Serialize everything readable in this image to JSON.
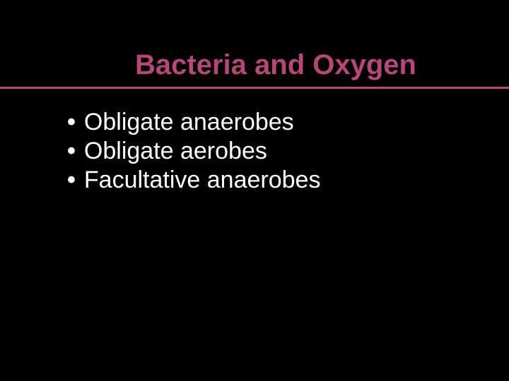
{
  "slide": {
    "title": "Bacteria and Oxygen",
    "title_color": "#b54779",
    "title_fontsize": 40,
    "rule_color": "#b54779",
    "background_color": "#000000",
    "text_color": "#ffffff",
    "bullet_fontsize": 34,
    "bullets": [
      {
        "marker": "•",
        "text": "Obligate anaerobes"
      },
      {
        "marker": "•",
        "text": "Obligate aerobes"
      },
      {
        "marker": "•",
        "text": "Facultative anaerobes"
      }
    ]
  }
}
